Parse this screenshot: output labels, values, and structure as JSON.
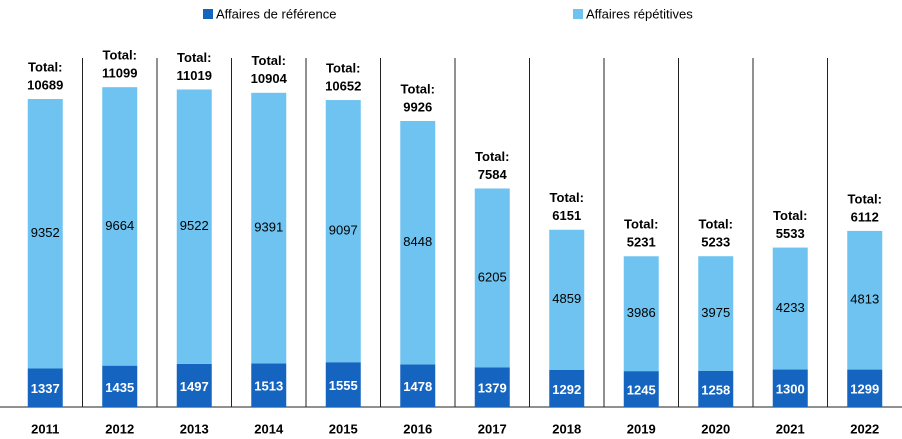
{
  "chart_data": {
    "type": "stacked_bar",
    "categories": [
      "2011",
      "2012",
      "2013",
      "2014",
      "2015",
      "2016",
      "2017",
      "2018",
      "2019",
      "2020",
      "2021",
      "2022"
    ],
    "series": [
      {
        "name": "Affaires de référence",
        "color": "#1565c0",
        "values": [
          1337,
          1435,
          1497,
          1513,
          1555,
          1478,
          1379,
          1292,
          1245,
          1258,
          1300,
          1299
        ]
      },
      {
        "name": "Affaires répétitives",
        "color": "#6ec3f0",
        "values": [
          9352,
          9664,
          9522,
          9391,
          9097,
          8448,
          6205,
          4859,
          3986,
          3975,
          4233,
          4813
        ]
      }
    ],
    "total_label": "Total:",
    "totals": [
      10689,
      11099,
      11019,
      10904,
      10652,
      9926,
      7584,
      6151,
      5231,
      5233,
      5533,
      6112
    ]
  }
}
